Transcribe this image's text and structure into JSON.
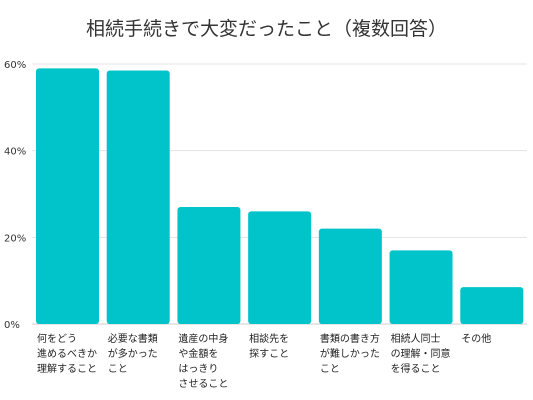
{
  "chart_data": {
    "type": "bar",
    "title": "相続手続きで大変だったこと（複数回答）",
    "categories": [
      [
        "何をどう",
        "進めるべきか",
        "理解すること"
      ],
      [
        "必要な書類",
        "が多かった",
        "こと"
      ],
      [
        "遺産の中身",
        "や金額を",
        "はっきり",
        "させること"
      ],
      [
        "相談先を",
        "探すこと"
      ],
      [
        "書類の書き方",
        "が難しかった",
        "こと"
      ],
      [
        "相続人同士",
        "の理解・同意",
        "を得ること"
      ],
      [
        "その他"
      ]
    ],
    "values": [
      59,
      58.5,
      27,
      26,
      22,
      17,
      8.5
    ],
    "ylim": [
      0,
      60
    ],
    "yticks": [
      "0%",
      "20%",
      "40%",
      "60%"
    ],
    "grid": true,
    "colors": {
      "bar": "#00c4c9"
    }
  }
}
